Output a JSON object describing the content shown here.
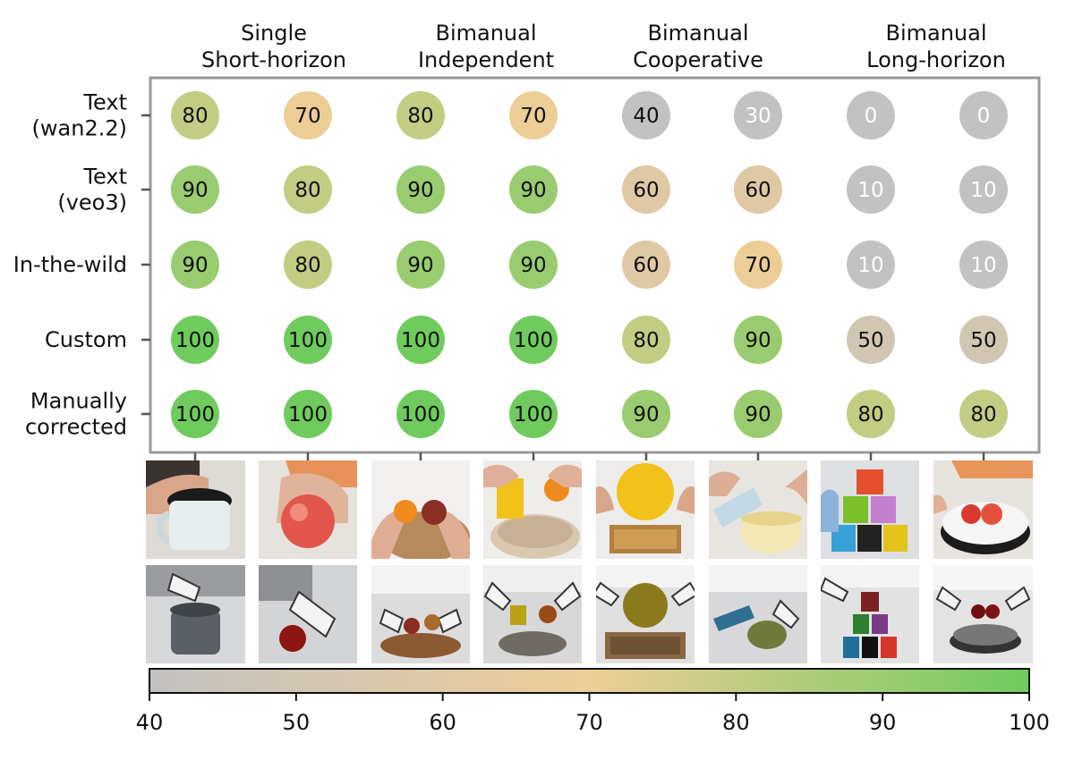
{
  "chart_data": {
    "type": "scatter",
    "columns": [
      {
        "group": [
          "Single",
          "Short-horizon"
        ]
      },
      {
        "group": [
          "Bimanual",
          "Independent"
        ]
      },
      {
        "group": [
          "Bimanual",
          "Cooperative"
        ]
      },
      {
        "group": [
          "Bimanual",
          "Long-horizon"
        ]
      }
    ],
    "rows": [
      {
        "label": [
          "Text",
          "(wan2.2)"
        ],
        "values": [
          80,
          70,
          80,
          70,
          40,
          30,
          0,
          0
        ]
      },
      {
        "label": [
          "Text",
          "(veo3)"
        ],
        "values": [
          90,
          80,
          90,
          90,
          60,
          60,
          10,
          10
        ]
      },
      {
        "label": [
          "In-the-wild"
        ],
        "values": [
          90,
          80,
          90,
          90,
          60,
          70,
          10,
          10
        ]
      },
      {
        "label": [
          "Custom"
        ],
        "values": [
          100,
          100,
          100,
          100,
          80,
          90,
          50,
          50
        ]
      },
      {
        "label": [
          "Manually",
          "corrected"
        ],
        "values": [
          100,
          100,
          100,
          100,
          90,
          90,
          80,
          80
        ]
      }
    ],
    "colorbar": {
      "min": 40,
      "max": 100,
      "ticks": [
        40,
        50,
        60,
        70,
        80,
        90,
        100
      ],
      "stops": [
        "#c2c2c2",
        "#edcd96",
        "#6fcb5d"
      ]
    },
    "below_min_color": "#c2c2c2"
  }
}
